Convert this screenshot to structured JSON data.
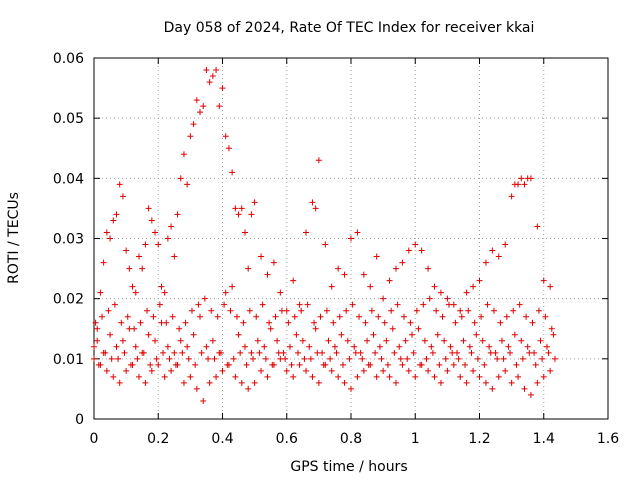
{
  "chart_data": {
    "type": "scatter",
    "title": "Day 058 of 2024, Rate Of TEC Index for receiver kkai",
    "xlabel": "GPS time / hours",
    "ylabel": "ROTI / TECUs",
    "xlim": [
      0,
      1.6
    ],
    "ylim": [
      0,
      0.06
    ],
    "xticks": [
      "0",
      "0.2",
      "0.4",
      "0.6",
      "0.8",
      "1",
      "1.2",
      "1.4",
      "1.6"
    ],
    "yticks": [
      "0",
      "0.01",
      "0.02",
      "0.03",
      "0.04",
      "0.05",
      "0.06"
    ],
    "grid": true,
    "marker": "+",
    "color": "#e00000",
    "series": [
      {
        "name": "ROTI",
        "x": [
          0.0,
          0.01,
          0.02,
          0.03,
          0.04,
          0.05,
          0.06,
          0.07,
          0.08,
          0.09,
          0.1,
          0.11,
          0.12,
          0.13,
          0.14,
          0.15,
          0.16,
          0.17,
          0.18,
          0.19,
          0.2,
          0.21,
          0.22,
          0.23,
          0.24,
          0.25,
          0.26,
          0.27,
          0.28,
          0.29,
          0.3,
          0.31,
          0.32,
          0.33,
          0.34,
          0.35,
          0.36,
          0.37,
          0.38,
          0.39,
          0.4,
          0.41,
          0.42,
          0.43,
          0.44,
          0.45,
          0.46,
          0.47,
          0.48,
          0.49,
          0.5,
          0.52,
          0.54,
          0.56,
          0.58,
          0.6,
          0.62,
          0.64,
          0.66,
          0.68,
          0.69,
          0.7,
          0.72,
          0.74,
          0.76,
          0.78,
          0.8,
          0.82,
          0.84,
          0.86,
          0.88,
          0.9,
          0.92,
          0.94,
          0.96,
          0.98,
          1.0,
          1.02,
          1.04,
          1.06,
          1.08,
          1.1,
          1.12,
          1.14,
          1.16,
          1.18,
          1.2,
          1.22,
          1.24,
          1.26,
          1.28,
          1.3,
          1.31,
          1.32,
          1.33,
          1.34,
          1.35,
          1.36,
          1.38,
          1.4,
          1.42,
          0.0,
          0.02,
          0.04,
          0.06,
          0.08,
          0.1,
          0.12,
          0.14,
          0.16,
          0.18,
          0.2,
          0.22,
          0.24,
          0.26,
          0.28,
          0.3,
          0.32,
          0.34,
          0.36,
          0.38,
          0.4,
          0.42,
          0.44,
          0.46,
          0.48,
          0.5,
          0.52,
          0.54,
          0.56,
          0.58,
          0.6,
          0.62,
          0.64,
          0.66,
          0.68,
          0.7,
          0.72,
          0.74,
          0.76,
          0.78,
          0.8,
          0.82,
          0.84,
          0.86,
          0.88,
          0.9,
          0.92,
          0.94,
          0.96,
          0.98,
          1.0,
          1.02,
          1.04,
          1.06,
          1.08,
          1.1,
          1.12,
          1.14,
          1.16,
          1.18,
          1.2,
          1.22,
          1.24,
          1.26,
          1.28,
          1.3,
          1.32,
          1.34,
          1.36,
          1.38,
          1.4,
          1.42,
          0.01,
          0.03,
          0.05,
          0.07,
          0.09,
          0.11,
          0.13,
          0.15,
          0.17,
          0.19,
          0.21,
          0.23,
          0.25,
          0.27,
          0.29,
          0.31,
          0.33,
          0.35,
          0.37,
          0.39,
          0.41,
          0.43,
          0.45,
          0.47,
          0.49,
          0.51,
          0.53,
          0.55,
          0.57,
          0.59,
          0.61,
          0.63,
          0.65,
          0.67,
          0.69,
          0.71,
          0.73,
          0.75,
          0.77,
          0.79,
          0.81,
          0.83,
          0.85,
          0.87,
          0.89,
          0.91,
          0.93,
          0.95,
          0.97,
          0.99,
          1.01,
          1.03,
          1.05,
          1.07,
          1.09,
          1.11,
          1.13,
          1.15,
          1.17,
          1.19,
          1.21,
          1.23,
          1.25,
          1.27,
          1.29,
          1.31,
          1.33,
          1.35,
          1.37,
          1.39,
          1.41,
          1.43,
          0.005,
          0.025,
          0.045,
          0.065,
          0.085,
          0.105,
          0.125,
          0.145,
          0.165,
          0.185,
          0.205,
          0.225,
          0.245,
          0.265,
          0.285,
          0.305,
          0.325,
          0.345,
          0.365,
          0.385,
          0.405,
          0.425,
          0.445,
          0.465,
          0.485,
          0.505,
          0.525,
          0.545,
          0.565,
          0.585,
          0.605,
          0.625,
          0.645,
          0.665,
          0.685,
          0.705,
          0.725,
          0.745,
          0.765,
          0.785,
          0.805,
          0.825,
          0.845,
          0.865,
          0.885,
          0.905,
          0.925,
          0.945,
          0.965,
          0.985,
          1.005,
          1.025,
          1.045,
          1.065,
          1.085,
          1.105,
          1.125,
          1.145,
          1.165,
          1.185,
          1.205,
          1.225,
          1.245,
          1.265,
          1.285,
          1.305,
          1.325,
          1.345,
          1.365,
          1.385,
          1.405,
          1.425,
          0.015,
          0.035,
          0.055,
          0.075,
          0.095,
          0.115,
          0.135,
          0.155,
          0.175,
          0.195,
          0.215,
          0.235,
          0.255,
          0.275,
          0.295,
          0.315,
          0.335,
          0.355,
          0.375,
          0.395,
          0.415,
          0.435,
          0.455,
          0.475,
          0.495,
          0.515,
          0.535,
          0.555,
          0.575,
          0.595,
          0.615,
          0.635,
          0.655,
          0.675,
          0.695,
          0.715,
          0.735,
          0.755,
          0.775,
          0.795,
          0.815,
          0.835,
          0.855,
          0.875,
          0.895,
          0.915,
          0.935,
          0.955,
          0.975,
          0.995,
          1.015,
          1.035,
          1.055,
          1.075,
          1.095,
          1.115,
          1.135,
          1.155,
          1.175,
          1.195,
          1.215,
          1.235,
          1.255,
          1.275,
          1.295,
          1.315,
          1.335,
          1.355,
          1.375,
          1.395,
          1.415,
          1.435
        ],
        "y": [
          0.012,
          0.015,
          0.021,
          0.026,
          0.031,
          0.03,
          0.033,
          0.034,
          0.039,
          0.037,
          0.028,
          0.025,
          0.022,
          0.021,
          0.027,
          0.025,
          0.029,
          0.035,
          0.033,
          0.031,
          0.029,
          0.022,
          0.021,
          0.03,
          0.032,
          0.027,
          0.034,
          0.04,
          0.044,
          0.039,
          0.047,
          0.049,
          0.053,
          0.051,
          0.052,
          0.058,
          0.056,
          0.057,
          0.058,
          0.052,
          0.055,
          0.047,
          0.045,
          0.041,
          0.035,
          0.034,
          0.035,
          0.031,
          0.025,
          0.034,
          0.036,
          0.027,
          0.024,
          0.026,
          0.021,
          0.018,
          0.023,
          0.019,
          0.031,
          0.036,
          0.035,
          0.043,
          0.029,
          0.022,
          0.025,
          0.024,
          0.03,
          0.031,
          0.024,
          0.022,
          0.027,
          0.02,
          0.023,
          0.025,
          0.026,
          0.028,
          0.029,
          0.028,
          0.025,
          0.022,
          0.021,
          0.02,
          0.019,
          0.018,
          0.021,
          0.022,
          0.023,
          0.026,
          0.028,
          0.027,
          0.029,
          0.037,
          0.039,
          0.039,
          0.04,
          0.039,
          0.04,
          0.04,
          0.032,
          0.023,
          0.022,
          0.01,
          0.009,
          0.008,
          0.007,
          0.006,
          0.008,
          0.009,
          0.007,
          0.006,
          0.008,
          0.009,
          0.007,
          0.008,
          0.009,
          0.006,
          0.007,
          0.005,
          0.003,
          0.006,
          0.007,
          0.008,
          0.009,
          0.007,
          0.006,
          0.005,
          0.006,
          0.008,
          0.007,
          0.009,
          0.01,
          0.008,
          0.007,
          0.009,
          0.008,
          0.007,
          0.006,
          0.009,
          0.008,
          0.007,
          0.006,
          0.005,
          0.007,
          0.008,
          0.009,
          0.007,
          0.008,
          0.007,
          0.006,
          0.009,
          0.008,
          0.007,
          0.009,
          0.008,
          0.007,
          0.006,
          0.008,
          0.009,
          0.007,
          0.006,
          0.008,
          0.007,
          0.006,
          0.005,
          0.007,
          0.008,
          0.006,
          0.007,
          0.005,
          0.004,
          0.006,
          0.007,
          0.008,
          0.013,
          0.011,
          0.014,
          0.012,
          0.013,
          0.015,
          0.012,
          0.011,
          0.014,
          0.013,
          0.016,
          0.012,
          0.011,
          0.013,
          0.012,
          0.014,
          0.017,
          0.012,
          0.013,
          0.011,
          0.021,
          0.022,
          0.014,
          0.012,
          0.011,
          0.013,
          0.012,
          0.015,
          0.013,
          0.011,
          0.012,
          0.014,
          0.013,
          0.012,
          0.015,
          0.011,
          0.013,
          0.012,
          0.014,
          0.013,
          0.012,
          0.011,
          0.013,
          0.014,
          0.012,
          0.013,
          0.015,
          0.012,
          0.013,
          0.014,
          0.015,
          0.013,
          0.012,
          0.014,
          0.013,
          0.012,
          0.011,
          0.013,
          0.012,
          0.014,
          0.013,
          0.012,
          0.011,
          0.013,
          0.012,
          0.014,
          0.013,
          0.012,
          0.011,
          0.013,
          0.012,
          0.014,
          0.016,
          0.017,
          0.018,
          0.019,
          0.016,
          0.017,
          0.015,
          0.016,
          0.018,
          0.017,
          0.019,
          0.016,
          0.017,
          0.015,
          0.016,
          0.018,
          0.019,
          0.02,
          0.018,
          0.017,
          0.019,
          0.018,
          0.017,
          0.016,
          0.018,
          0.017,
          0.019,
          0.016,
          0.017,
          0.018,
          0.016,
          0.017,
          0.018,
          0.019,
          0.016,
          0.017,
          0.018,
          0.016,
          0.017,
          0.018,
          0.019,
          0.017,
          0.016,
          0.018,
          0.017,
          0.016,
          0.018,
          0.019,
          0.017,
          0.016,
          0.018,
          0.019,
          0.02,
          0.018,
          0.017,
          0.019,
          0.016,
          0.017,
          0.018,
          0.016,
          0.017,
          0.019,
          0.018,
          0.016,
          0.017,
          0.018,
          0.019,
          0.017,
          0.016,
          0.018,
          0.017,
          0.015,
          0.009,
          0.011,
          0.01,
          0.01,
          0.011,
          0.009,
          0.01,
          0.011,
          0.009,
          0.01,
          0.011,
          0.01,
          0.009,
          0.011,
          0.01,
          0.009,
          0.011,
          0.01,
          0.01,
          0.011,
          0.009,
          0.01,
          0.011,
          0.009,
          0.01,
          0.011,
          0.01,
          0.009,
          0.011,
          0.01,
          0.009,
          0.011,
          0.01,
          0.01,
          0.011,
          0.009,
          0.01,
          0.011,
          0.009,
          0.01,
          0.011,
          0.01,
          0.009,
          0.011,
          0.01,
          0.009,
          0.011,
          0.01,
          0.01,
          0.011,
          0.009,
          0.01,
          0.011,
          0.009,
          0.01,
          0.011,
          0.01,
          0.009,
          0.011,
          0.01,
          0.009,
          0.011,
          0.01,
          0.01,
          0.011,
          0.009,
          0.01,
          0.011,
          0.009,
          0.01,
          0.011,
          0.01
        ]
      }
    ]
  }
}
